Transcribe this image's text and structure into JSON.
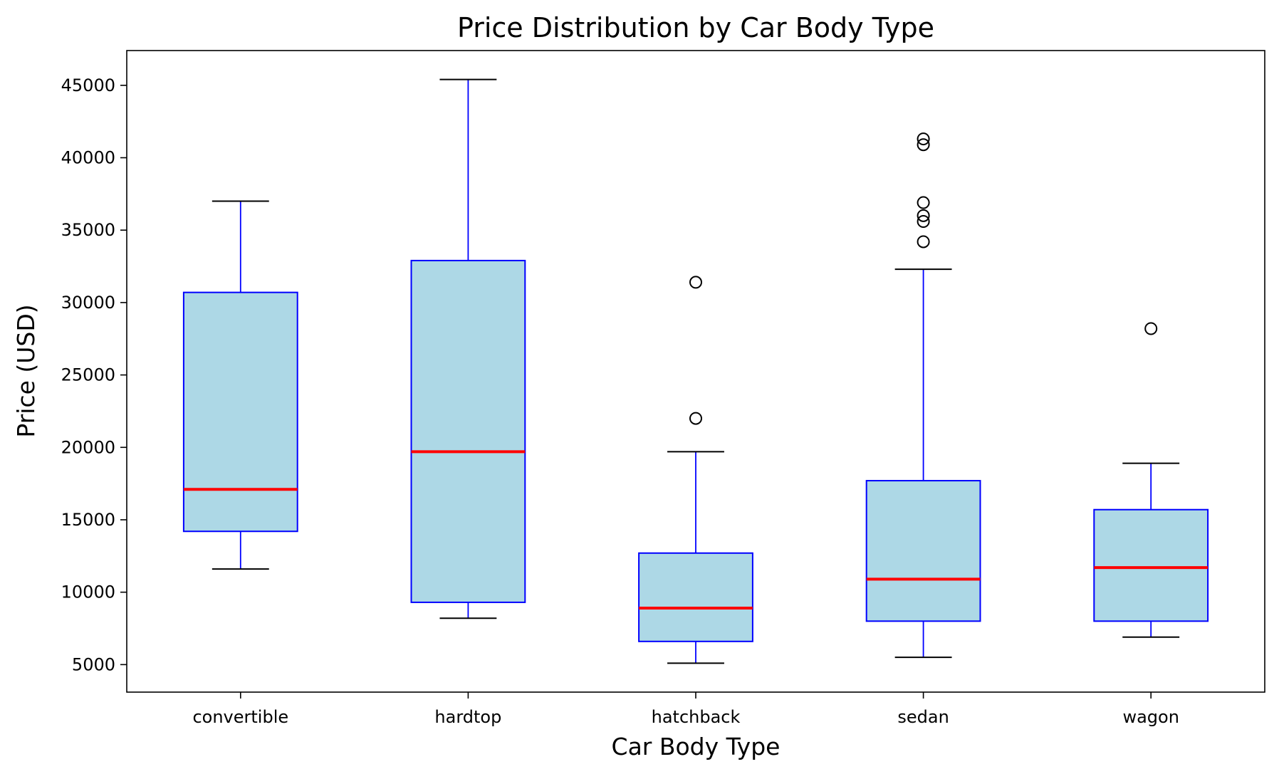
{
  "chart_data": {
    "type": "box",
    "title": "Price Distribution by Car Body Type",
    "xlabel": "Car Body Type",
    "ylabel": "Price (USD)",
    "ylim": [
      3100,
      47400
    ],
    "yticks": [
      5000,
      10000,
      15000,
      20000,
      25000,
      30000,
      35000,
      40000,
      45000
    ],
    "grid": false,
    "colors": {
      "box_fill": "#add8e6",
      "box_edge": "#0000ff",
      "whisker": "#0000ff",
      "cap": "#000000",
      "median": "#ff0000",
      "flier": "#000000"
    },
    "categories": [
      "convertible",
      "hardtop",
      "hatchback",
      "sedan",
      "wagon"
    ],
    "boxes": [
      {
        "category": "convertible",
        "whislo": 11600,
        "q1": 14200,
        "median": 17100,
        "q3": 30700,
        "whishi": 37000,
        "fliers": []
      },
      {
        "category": "hardtop",
        "whislo": 8200,
        "q1": 9300,
        "median": 19700,
        "q3": 32900,
        "whishi": 45400,
        "fliers": []
      },
      {
        "category": "hatchback",
        "whislo": 5100,
        "q1": 6600,
        "median": 8900,
        "q3": 12700,
        "whishi": 19700,
        "fliers": [
          22000,
          31400
        ]
      },
      {
        "category": "sedan",
        "whislo": 5500,
        "q1": 8000,
        "median": 10900,
        "q3": 17700,
        "whishi": 32300,
        "fliers": [
          34200,
          35600,
          36000,
          36900,
          40900,
          41300
        ]
      },
      {
        "category": "wagon",
        "whislo": 6900,
        "q1": 8000,
        "median": 11700,
        "q3": 15700,
        "whishi": 18900,
        "fliers": [
          28200
        ]
      }
    ]
  }
}
